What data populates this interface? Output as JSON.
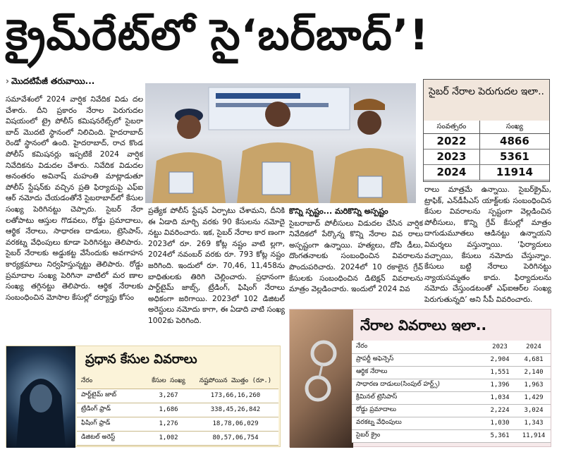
{
  "headline": "క్రైమ్‌రేట్‌లో సై‘బర్‌బాద్‌’!",
  "continued": "మొదటిపేజీ తరువాయి...",
  "columns": {
    "col1": "సమావేశంలో 2024 వార్షిక నివేదిక విడు దల చేశారు. దీని ప్రకారం నేరాల పెరుగుదల విషయంలో ట్రై పోలీస్ కమిషనరేట్స్‌లో సైబరా బాద్ మొదటి స్థానంలో నిలిచింది. హైదరాబాద్ రెండో స్థానంలో ఉంది. హైదరాబాద్, రాచ కొండ పోలీస్ కమిషనర్లు ఇప్పటికే 2024 వార్షిక నివేదికను విడుదల చేశారు. నివేదిక విడుదల అనంతరం అవినాష్ మహంతి మాట్లాడుతూ పోలీస్ స్టేషన్‌కు వచ్చిన ప్రతి ఫిర్యాదుపై ఎఫ్ఐ ఆర్ నమోదు చేయడంతోనే సైబరాబాద్‌లో కేసుల సంఖ్య పెరిగినట్టు చెప్పారు. సైబర్ నేరా లతోపాటు ఆస్తుల గొడవలు, రోడ్డు ప్రమాదాలు, ఆర్థిక నేరాలు, సాధారణ దాడులు, ట్రెసిపాస్, వరకట్న వేధింపులు కూడా పెరిగినట్టు తెలిపారు. సైబర్ నేరాలకు అడ్డుకట్ట వేసేందుకు అవగాహన కార్యక్రమాలు నిర్వహిస్తున్నట్టు తెలిపారు. రోడ్డు ప్రమాదాల సంఖ్య పెరిగినా వాటిలో మర ణాల సంఖ్య తగ్గినట్టు తెలిపారు. ఆర్థిక నేరాలకు సంబంధించిన మోసాల కేసుల్లో దర్యాప్తు కోసం",
    "col2": "ప్రత్యేక పోలీస్ స్టేషన్ ఏర్పాటు చేశామని, దీనికి ఈ ఏడాది మార్చి వరకు 90 కేసులను నమోదై నట్టు వివరించారు. ఇక, సైబర్ నేరాల కార ణంగా 2023లో రూ. 269 కోట్ల నష్టం వాటి ల్లగా, 2024లో నవంబర్ వరకు రూ. 793 కోట్ల నష్టం జరిగింది. ఇందులో రూ. 70,46, 11,458ను బాధితులకు తిరిగి చెల్లించారు. ప్రధానంగా పార్ట్‌టైమ్ జాబ్స్, ట్రేడింగ్, ఫిషింగ్ నేరాలు అధికంగా జరిగాయి. 2023లో 102 డిజిటల్ అరెస్టులు నమోదు కాగా, ఈ ఏడాది వాటి సంఖ్య 1002కు పెరిగింది.",
    "col3_head": "కొన్ని స్పష్టం... మరికొన్ని అస్పష్టం",
    "col3": "సైబరాబాద్ పోలీసులు విడుదల చేసిన వార్షిక నివేదికలో పేర్కొన్న కొన్ని నేరాల వివ రాలు అస్పష్టంగా ఉన్నాయి. హత్యలు, దోపి డీలు, దొంగతనాలకు సంబంధించిన వివరాలను పొందుపరిచారు. 2024లో 10 రకాలైన గ్రేవ్ కేసులకు సంబంధించిన డిటెక్షన్ వివరాలను మాత్రం వెల్లడించారు. ఇందులో 2024 వివ",
    "col4": "రాలు మాత్రమే ఉన్నాయి. సైబర్‌క్రైమ్, ట్రాఫిక్, ఎన్‌డీపీఎస్ యాక్ట్‌లకు సంబంధించిన కేసుల వివరాలను స్పష్టంగా వెల్లడించిన పోలీసులు, కొన్ని గ్రేవ్ కేసుల్లో మాత్రం దాగుడుమూతలు ఆడినట్టు ఉన్నాయని విమర్శలు వస్తున్నాయి. ‘ఫిర్యాదులు వచ్చాయి, కేసులు నమోదు చేస్తున్నాం. కేసులు బట్టి నేరాలు పెరిగినట్టు న్యాయసమ్మతం కాదు. ఫిర్యాదులను నమోదు చేస్తుండటంతో ఎఫ్ఐఆర్‌ల సంఖ్య పెరుగుతున్నది’ అని సీపీ వివరించారు."
  },
  "growth_box": {
    "title": "సైబర్ నేరాల పెరుగుదల ఇలా..",
    "col_year": "సంవత్సరం",
    "col_count": "సంఖ్య",
    "rows": [
      {
        "year": "2022",
        "count": "4866"
      },
      {
        "year": "2023",
        "count": "5361"
      },
      {
        "year": "2024",
        "count": "11914"
      }
    ]
  },
  "crimes_box": {
    "title": "నేరాల వివరాలు ఇలా..",
    "headers": [
      "నేరం",
      "2023",
      "2024"
    ],
    "rows": [
      {
        "crime": "ప్రాపర్టీ అఫెన్సెస్",
        "y2023": "2,904",
        "y2024": "4,681"
      },
      {
        "crime": "ఆర్థిక నేరాలు",
        "y2023": "1,551",
        "y2024": "2,140"
      },
      {
        "crime": "సాధారణ దాడులు(సింపుల్ హర్ట్స్)",
        "y2023": "1,396",
        "y2024": "1,963"
      },
      {
        "crime": "క్రిమినల్ ట్రెసిపాస్",
        "y2023": "1,034",
        "y2024": "1,429"
      },
      {
        "crime": "రోడ్డు ప్రమాదాలు",
        "y2023": "2,224",
        "y2024": "3,024"
      },
      {
        "crime": "వరకట్న వేధింపులు",
        "y2023": "1,030",
        "y2024": "1,343"
      },
      {
        "crime": "సైబర్ క్రైం",
        "y2023": "5,361",
        "y2024": "11,914"
      }
    ]
  },
  "cases_box": {
    "title": "ప్రధాన కేసుల వివరాలు",
    "headers": [
      "నేరం",
      "కేసుల సంఖ్య",
      "నష్టపోయిన మొత్తం (రూ.)"
    ],
    "rows": [
      {
        "crime": "పార్ట్‌టైమ్ జాబ్",
        "cases": "3,267",
        "amount": "173,66,16,260"
      },
      {
        "crime": "ట్రేడింగ్ ఫ్రాడ్",
        "cases": "1,686",
        "amount": "338,45,26,842"
      },
      {
        "crime": "ఫిషింగ్ ఫ్రాడ్",
        "cases": "1,276",
        "amount": "18,78,06,029"
      },
      {
        "crime": "డిజిటల్ అరెస్ట్",
        "cases": "1,002",
        "amount": "80,57,06,754"
      }
    ]
  },
  "colors": {
    "growth_title_bg": "#f1e6dc",
    "crimes_bg": "#f6e9ea",
    "cases_bg": "#fbf3d9"
  }
}
